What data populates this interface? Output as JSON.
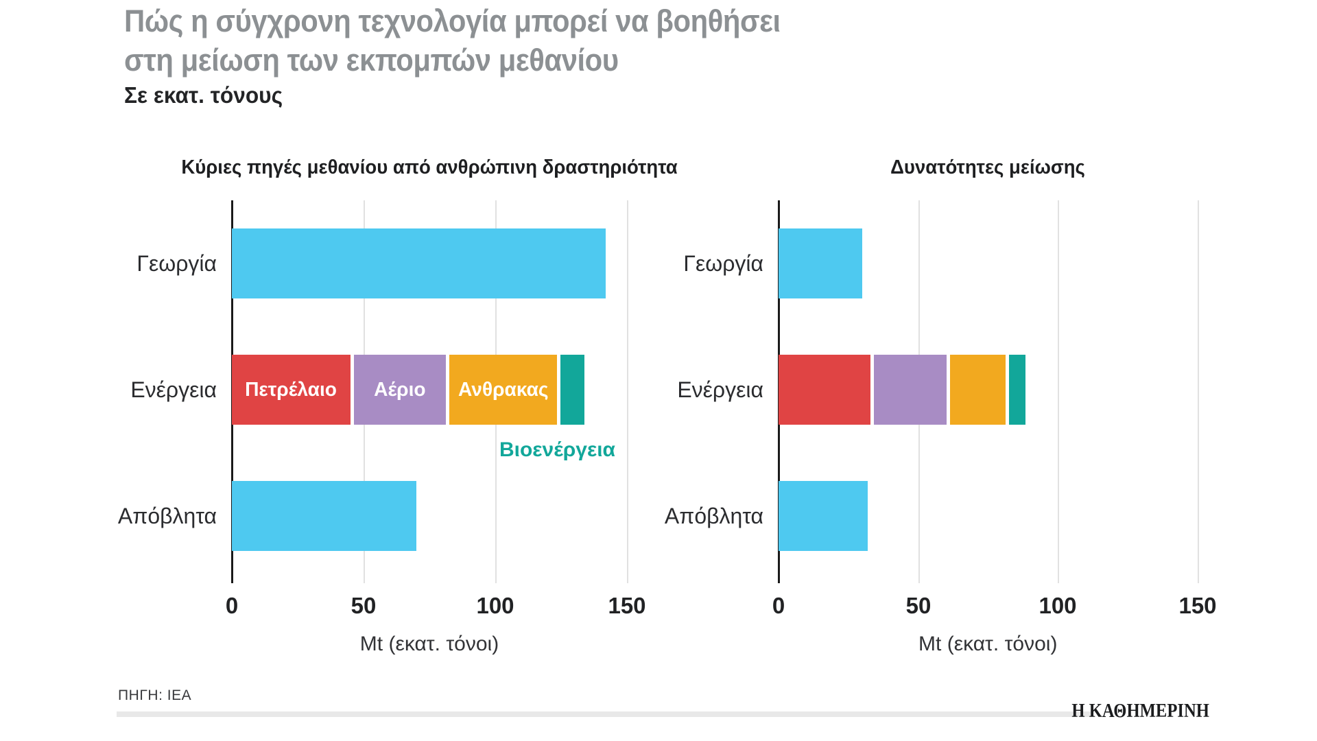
{
  "title": {
    "line1": "Πώς η σύγχρονη τεχνολογία μπορεί να βοηθήσει",
    "line2": "στη μείωση των εκπομπών μεθανίου"
  },
  "subtitle": "Σε εκατ. τόνους",
  "source": "ΠΗΓΗ: IEA",
  "logo": "Η ΚΑΘΗΜΕΡΙΝΗ",
  "colors": {
    "title_gray": "#8C9093",
    "text_dark": "#232426",
    "axis": "#1A1A1A",
    "gridline": "#E1E1E1",
    "blue": "#4EC9F0",
    "red": "#E04444",
    "purple": "#A88CC4",
    "orange": "#F2A91F",
    "teal": "#12A79A"
  },
  "chart_data": [
    {
      "type": "bar",
      "orientation": "horizontal",
      "title": "Κύριες πηγές μεθανίου από ανθρώπινη δραστηριότητα",
      "xlabel": "Mt (εκατ. τόνοι)",
      "xticks": [
        0,
        50,
        100,
        150
      ],
      "xlim": [
        0,
        163
      ],
      "grid": true,
      "categories": [
        "Γεωργία",
        "Ενέργεια",
        "Απόβλητα"
      ],
      "bars": [
        {
          "category": "Γεωργία",
          "value": 142,
          "color": "#4EC9F0"
        },
        {
          "category": "Ενέργεια",
          "segments": [
            {
              "label": "Πετρέλαιο",
              "value": 45,
              "color": "#E04444",
              "label_position": "inside"
            },
            {
              "label": "Αέριο",
              "value": 35,
              "color": "#A88CC4",
              "label_position": "inside"
            },
            {
              "label": "Ανθρακας",
              "value": 41,
              "color": "#F2A91F",
              "label_position": "inside"
            },
            {
              "label": "Βιοενέργεια",
              "value": 9,
              "color": "#12A79A",
              "label_position": "below"
            }
          ]
        },
        {
          "category": "Απόβλητα",
          "value": 70,
          "color": "#4EC9F0"
        }
      ]
    },
    {
      "type": "bar",
      "orientation": "horizontal",
      "title": "Δυνατότητες μείωσης",
      "xlabel": "Mt (εκατ. τόνοι)",
      "xticks": [
        0,
        50,
        100,
        150
      ],
      "xlim": [
        0,
        163
      ],
      "grid": true,
      "categories": [
        "Γεωργία",
        "Ενέργεια",
        "Απόβλητα"
      ],
      "bars": [
        {
          "category": "Γεωργία",
          "value": 30,
          "color": "#4EC9F0"
        },
        {
          "category": "Ενέργεια",
          "segments": [
            {
              "label": "Πετρέλαιο",
              "value": 33,
              "color": "#E04444",
              "label_position": "none"
            },
            {
              "label": "Αέριο",
              "value": 26,
              "color": "#A88CC4",
              "label_position": "none"
            },
            {
              "label": "Ανθρακας",
              "value": 20,
              "color": "#F2A91F",
              "label_position": "none"
            },
            {
              "label": "Βιοενέργεια",
              "value": 6,
              "color": "#12A79A",
              "label_position": "none"
            }
          ]
        },
        {
          "category": "Απόβλητα",
          "value": 32,
          "color": "#4EC9F0"
        }
      ]
    }
  ]
}
